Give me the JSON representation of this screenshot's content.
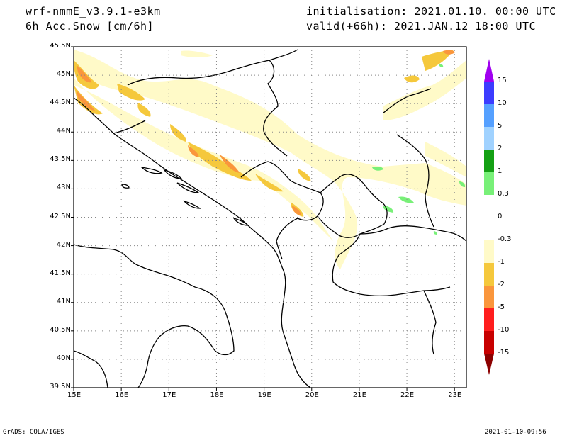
{
  "header": {
    "model": "wrf-nmmE_v3.9.1-e3km",
    "field": "6h Acc.Snow [cm/6h]",
    "init": "initialisation: 2021.01.10.  00:00 UTC",
    "valid": "valid(+66h): 2021.JAN.12 18:00 UTC"
  },
  "map": {
    "lon_min": 15,
    "lon_max": 23.25,
    "lat_min": 39.5,
    "lat_max": 45.5,
    "lat_ticks": [
      "45.5N",
      "45N",
      "44.5N",
      "44N",
      "43.5N",
      "43N",
      "42.5N",
      "42N",
      "41.5N",
      "41N",
      "40.5N",
      "40N",
      "39.5N"
    ],
    "lat_values": [
      45.5,
      45,
      44.5,
      44,
      43.5,
      43,
      42.5,
      42,
      41.5,
      41,
      40.5,
      40,
      39.5
    ],
    "lon_ticks": [
      "15E",
      "16E",
      "17E",
      "18E",
      "19E",
      "20E",
      "21E",
      "22E",
      "23E"
    ],
    "lon_values": [
      15,
      16,
      17,
      18,
      19,
      20,
      21,
      22,
      23
    ],
    "grid": "dotted"
  },
  "legend": {
    "colors": [
      "#a000f0",
      "#3c3cff",
      "#55a0ff",
      "#a0d2ff",
      "#14a014",
      "#78f078",
      "#ffffff",
      "#ffffff",
      "#fffac8",
      "#f5c83c",
      "#fa963c",
      "#ff1e1e",
      "#c80000",
      "#8c0000"
    ],
    "labels": [
      "15",
      "10",
      "5",
      "2",
      "1",
      "0.3",
      "0",
      "-0.3",
      "-1",
      "-2",
      "-5",
      "-10",
      "-15"
    ]
  },
  "footer": {
    "left": "GrADS: COLA/IGES",
    "right": "2021-01-10-09:56"
  }
}
